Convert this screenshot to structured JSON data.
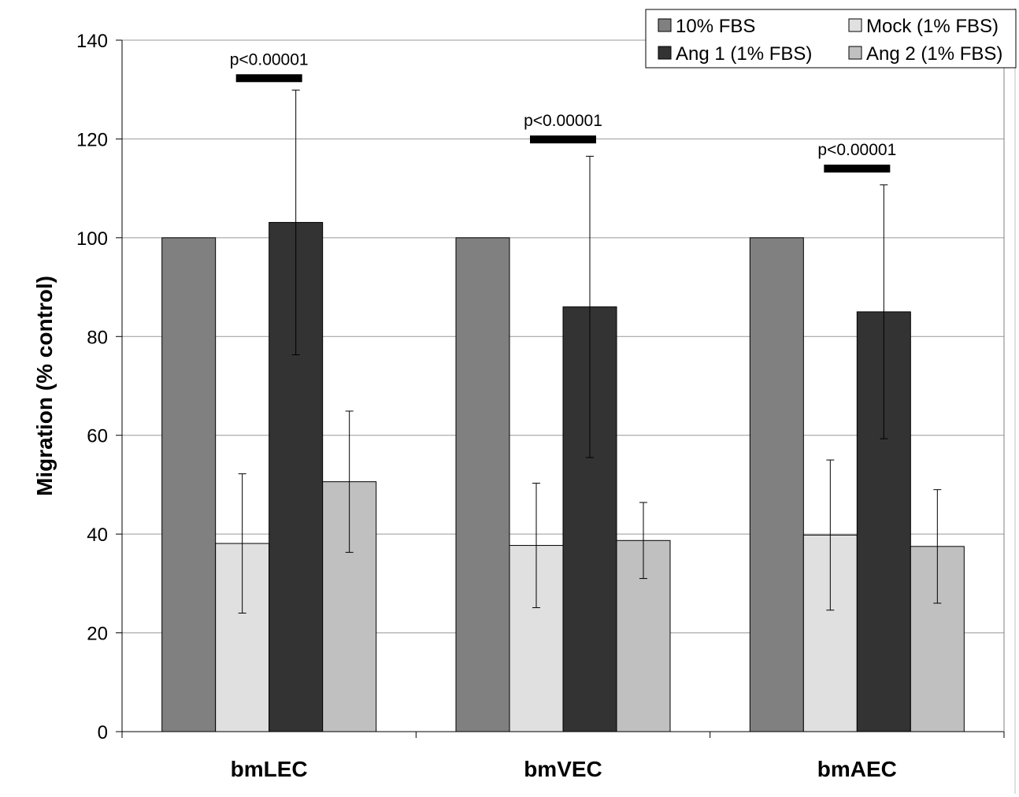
{
  "chart_data": {
    "type": "bar",
    "ylabel": "Migration (% control)",
    "ylim": [
      0,
      140
    ],
    "yticks": [
      0,
      20,
      40,
      60,
      80,
      100,
      120,
      140
    ],
    "grid": true,
    "legend_position": "top-right",
    "categories": [
      "bmLEC",
      "bmVEC",
      "bmAEC"
    ],
    "series": [
      {
        "name": "10% FBS",
        "color": "#808080",
        "values": [
          100,
          100,
          100
        ],
        "error": [
          null,
          null,
          null
        ]
      },
      {
        "name": "Mock (1% FBS)",
        "color": "#e0e0e0",
        "values": [
          38.1,
          37.7,
          39.8
        ],
        "error": [
          14.1,
          12.6,
          15.2
        ]
      },
      {
        "name": "Ang 1 (1% FBS)",
        "color": "#333333",
        "values": [
          103.1,
          86.0,
          85.0
        ],
        "error": [
          26.8,
          30.5,
          25.7
        ]
      },
      {
        "name": "Ang 2 (1% FBS)",
        "color": "#c0c0c0",
        "values": [
          50.6,
          38.7,
          37.5
        ],
        "error": [
          14.3,
          7.7,
          11.5
        ]
      }
    ],
    "legend_order": [
      "10% FBS",
      "Mock (1% FBS)",
      "Ang 1 (1% FBS)",
      "Ang 2 (1% FBS)"
    ],
    "annotations": [
      {
        "category": "bmLEC",
        "text": "p<0.00001",
        "y": 132.3,
        "from_series": "Ang 1 (1% FBS)",
        "to_series": "Mock (1% FBS)"
      },
      {
        "category": "bmVEC",
        "text": "p<0.00001",
        "y": 119.9,
        "from_series": "Ang 1 (1% FBS)",
        "to_series": "Mock (1% FBS)"
      },
      {
        "category": "bmAEC",
        "text": "p<0.00001",
        "y": 114.0,
        "from_series": "Ang 1 (1% FBS)",
        "to_series": "Mock (1% FBS)"
      }
    ]
  }
}
